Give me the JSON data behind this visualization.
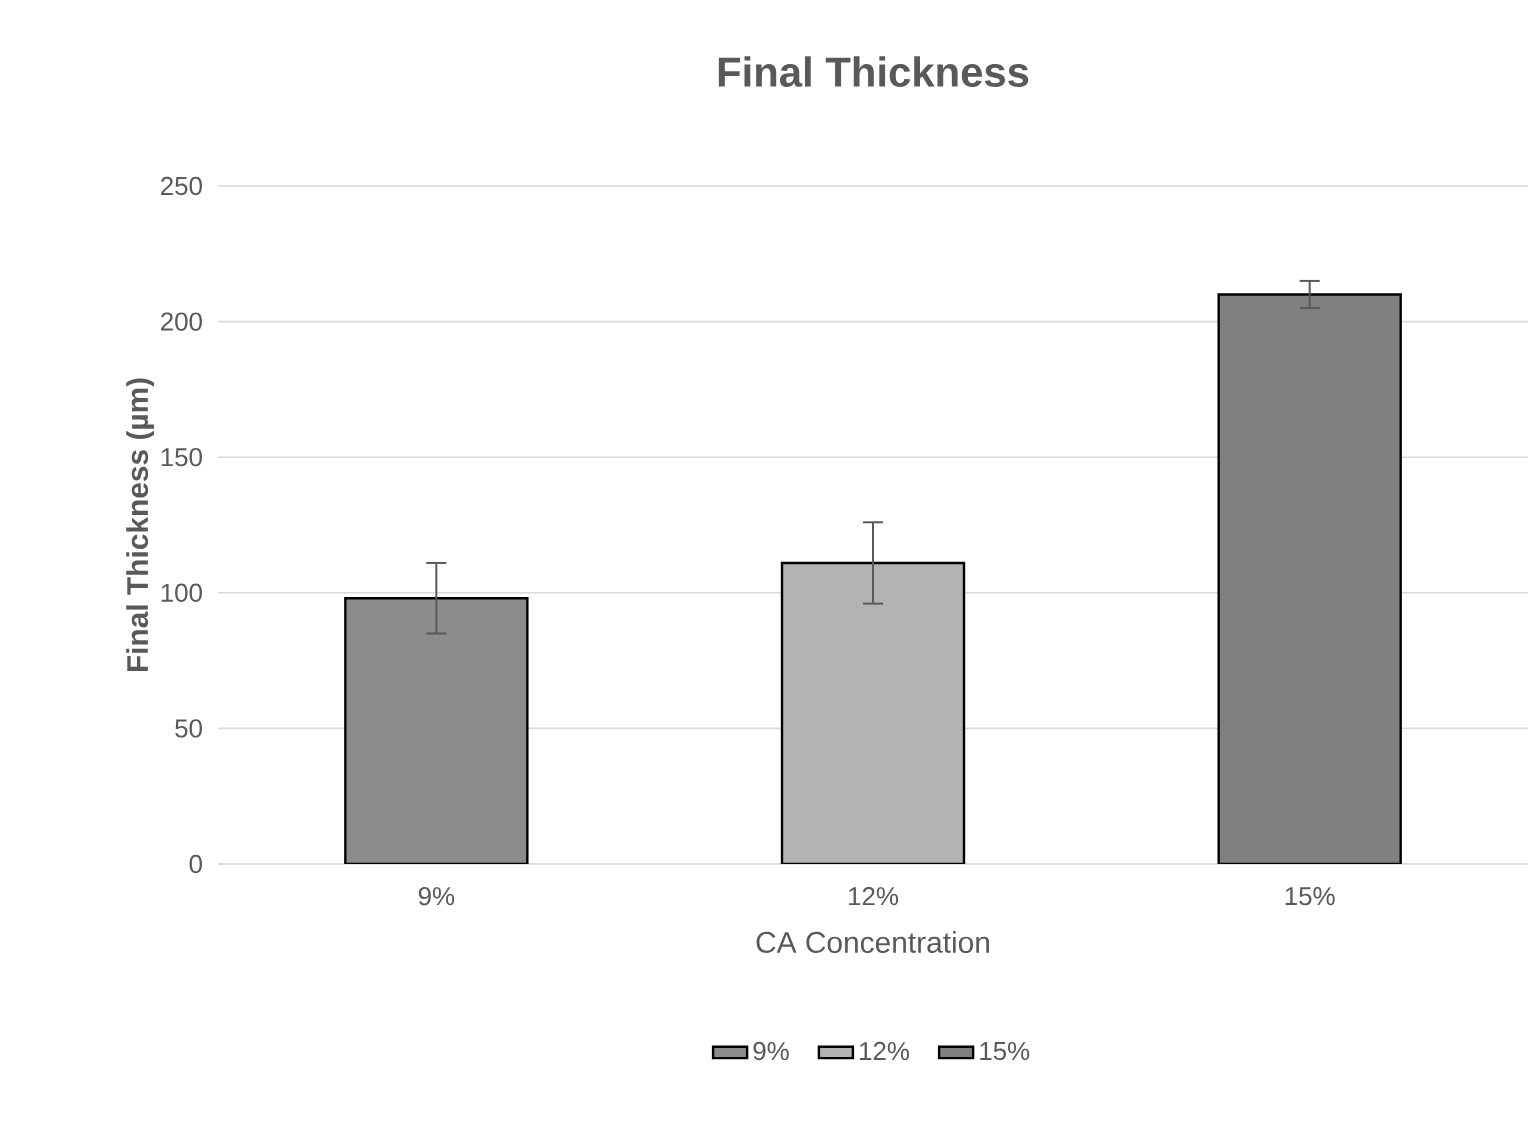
{
  "chart_data": {
    "type": "bar",
    "title": "Final Thickness",
    "xlabel": "CA Concentration",
    "ylabel": "Final Thickness (µm)",
    "categories": [
      "9%",
      "12%",
      "15%"
    ],
    "series": [
      {
        "name": "9%",
        "color": "#8c8c8c",
        "values": [
          98,
          null,
          null
        ],
        "errors": [
          13,
          null,
          null
        ]
      },
      {
        "name": "12%",
        "color": "#b3b3b3",
        "values": [
          null,
          111,
          null
        ],
        "errors": [
          null,
          15,
          null
        ]
      },
      {
        "name": "15%",
        "color": "#808080",
        "values": [
          null,
          null,
          210
        ],
        "errors": [
          null,
          null,
          5
        ]
      }
    ],
    "ylim": [
      0,
      250
    ],
    "yticks": [
      0,
      50,
      100,
      150,
      200,
      250
    ],
    "grid": "y",
    "legend": "bottom"
  }
}
